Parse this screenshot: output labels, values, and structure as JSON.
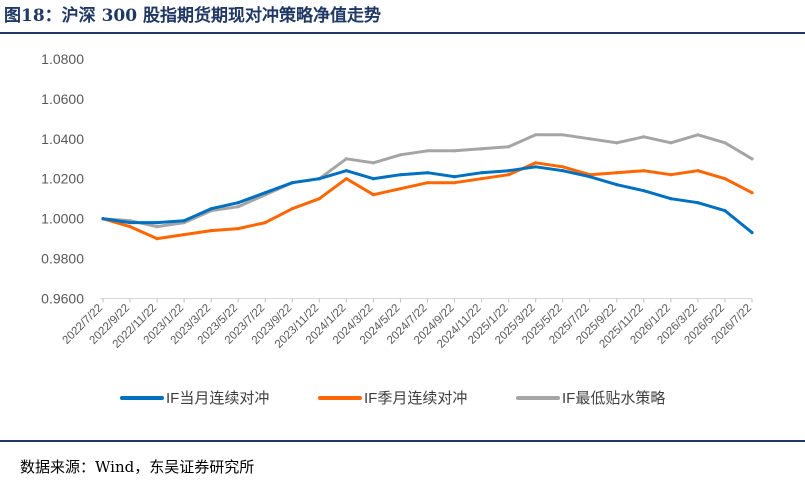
{
  "title": "图18：沪深 300 股指期货期现对冲策略净值走势",
  "source": "数据来源：Wind，东吴证券研究所",
  "chart_data": {
    "type": "line",
    "title": "",
    "xlabel": "",
    "ylabel": "",
    "ylim": [
      0.96,
      1.09
    ],
    "yticks": [
      "0.9600",
      "0.9800",
      "1.0000",
      "1.0200",
      "1.0400",
      "1.0600",
      "1.0800"
    ],
    "ytick_values": [
      0.96,
      0.98,
      1.0,
      1.02,
      1.04,
      1.06,
      1.08
    ],
    "x": [
      "2022/7/22",
      "2022/9/22",
      "2022/11/22",
      "2023/1/22",
      "2023/3/22",
      "2023/5/22",
      "2023/7/22",
      "2023/9/22",
      "2023/11/22",
      "2024/1/22",
      "2024/3/22",
      "2024/5/22",
      "2024/7/22",
      "2024/9/22",
      "2024/11/22",
      "2025/1/22",
      "2025/3/22",
      "2025/5/22",
      "2025/7/22",
      "2025/9/22",
      "2025/11/22",
      "2026/1/22",
      "2026/3/22",
      "2026/5/22",
      "2026/7/22"
    ],
    "grid": false,
    "legend_position": "bottom",
    "series": [
      {
        "name": "IF当月连续对冲",
        "color": "#0070c0",
        "values": [
          1.0,
          0.998,
          0.998,
          0.999,
          1.005,
          1.008,
          1.013,
          1.018,
          1.02,
          1.024,
          1.02,
          1.022,
          1.023,
          1.021,
          1.023,
          1.024,
          1.026,
          1.024,
          1.021,
          1.017,
          1.014,
          1.01,
          1.008,
          1.004,
          0.993
        ]
      },
      {
        "name": "IF季月连续对冲",
        "color": "#ff6600",
        "values": [
          1.0,
          0.996,
          0.99,
          0.992,
          0.994,
          0.995,
          0.998,
          1.005,
          1.01,
          1.02,
          1.012,
          1.015,
          1.018,
          1.018,
          1.02,
          1.022,
          1.028,
          1.026,
          1.022,
          1.023,
          1.024,
          1.022,
          1.024,
          1.02,
          1.013
        ]
      },
      {
        "name": "IF最低贴水策略",
        "color": "#a5a5a5",
        "values": [
          1.0,
          0.999,
          0.996,
          0.998,
          1.004,
          1.006,
          1.012,
          1.018,
          1.02,
          1.03,
          1.028,
          1.032,
          1.034,
          1.034,
          1.035,
          1.036,
          1.042,
          1.042,
          1.04,
          1.038,
          1.041,
          1.038,
          1.042,
          1.038,
          1.03
        ]
      }
    ]
  }
}
